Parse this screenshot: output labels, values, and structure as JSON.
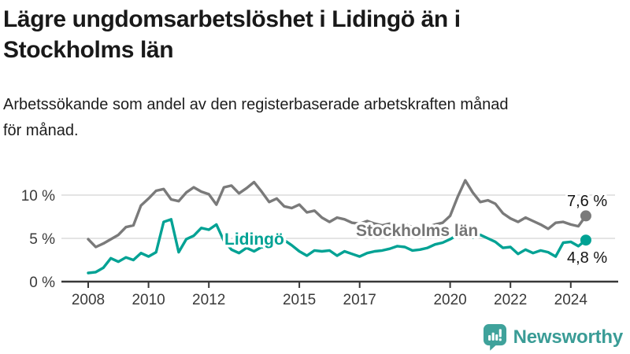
{
  "header": {
    "title_line1": "Lägre ungdomsarbetslöshet i Lidingö än i",
    "title_line2": "Stockholms län",
    "subtitle_line1": "Arbetssökande som andel av den registerbaserade arbetskraften månad",
    "subtitle_line2": "för månad."
  },
  "chart_data": {
    "type": "line",
    "title": "Lägre ungdomsarbetslöshet i Lidingö än i Stockholms län",
    "subtitle": "Arbetssökande som andel av den registerbaserade arbetskraften månad för månad.",
    "xlabel": "",
    "ylabel": "",
    "grid": "horizontal-gridlines-at-5-and-10-percent",
    "legend_position": "inline-labels-on-lines",
    "ylim": [
      0,
      12.5
    ],
    "xlim": [
      2008,
      2024.58
    ],
    "yticks": [
      {
        "value": 0,
        "label": "0 %"
      },
      {
        "value": 5,
        "label": "5 %"
      },
      {
        "value": 10,
        "label": "10 %"
      }
    ],
    "xticks": [
      {
        "value": 2008,
        "label": "2008"
      },
      {
        "value": 2010,
        "label": "2010"
      },
      {
        "value": 2012,
        "label": "2012"
      },
      {
        "value": 2015,
        "label": "2015"
      },
      {
        "value": 2017,
        "label": "2017"
      },
      {
        "value": 2020,
        "label": "2020"
      },
      {
        "value": 2022,
        "label": "2022"
      },
      {
        "value": 2024,
        "label": "2024"
      }
    ],
    "x": [
      2008.0,
      2008.25,
      2008.5,
      2008.75,
      2009.0,
      2009.25,
      2009.5,
      2009.75,
      2010.0,
      2010.25,
      2010.5,
      2010.75,
      2011.0,
      2011.25,
      2011.5,
      2011.75,
      2012.0,
      2012.25,
      2012.5,
      2012.75,
      2013.0,
      2013.25,
      2013.5,
      2013.75,
      2014.0,
      2014.25,
      2014.5,
      2014.75,
      2015.0,
      2015.25,
      2015.5,
      2015.75,
      2016.0,
      2016.25,
      2016.5,
      2016.75,
      2017.0,
      2017.25,
      2017.5,
      2017.75,
      2018.0,
      2018.25,
      2018.5,
      2018.75,
      2019.0,
      2019.25,
      2019.5,
      2019.75,
      2020.0,
      2020.25,
      2020.5,
      2020.75,
      2021.0,
      2021.25,
      2021.5,
      2021.75,
      2022.0,
      2022.25,
      2022.5,
      2022.75,
      2023.0,
      2023.25,
      2023.5,
      2023.75,
      2024.0,
      2024.25,
      2024.5
    ],
    "series": [
      {
        "id": "stockholms-lan",
        "name": "Stockholms län",
        "color": "#7a7a7a",
        "label_color": "#757575",
        "end_label": "7,6 %",
        "end_value": 7.6,
        "values": [
          4.9,
          4.0,
          4.4,
          4.9,
          5.4,
          6.3,
          6.5,
          8.8,
          9.6,
          10.5,
          10.7,
          9.5,
          9.3,
          10.3,
          10.9,
          10.4,
          10.1,
          8.9,
          10.9,
          11.1,
          10.2,
          10.8,
          11.5,
          10.4,
          9.2,
          9.6,
          8.7,
          8.5,
          8.9,
          8.0,
          8.2,
          7.4,
          6.9,
          7.4,
          7.2,
          6.8,
          6.7,
          7.0,
          6.7,
          6.5,
          6.7,
          6.4,
          6.6,
          6.3,
          6.4,
          6.3,
          6.6,
          6.8,
          7.6,
          9.8,
          11.7,
          10.3,
          9.2,
          9.4,
          9.0,
          7.9,
          7.3,
          6.9,
          7.4,
          7.0,
          6.6,
          6.1,
          6.8,
          6.9,
          6.6,
          6.4,
          7.6
        ]
      },
      {
        "id": "lidingo",
        "name": "Lidingö",
        "color": "#00a294",
        "label_color": "#00a294",
        "end_label": "4,8 %",
        "end_value": 4.8,
        "values": [
          1.0,
          1.1,
          1.6,
          2.7,
          2.3,
          2.8,
          2.5,
          3.3,
          2.9,
          3.4,
          6.9,
          7.2,
          3.4,
          4.9,
          5.3,
          6.2,
          6.0,
          6.6,
          4.7,
          3.7,
          3.3,
          3.9,
          3.5,
          4.0,
          3.8,
          4.6,
          4.8,
          4.2,
          3.5,
          3.0,
          3.6,
          3.5,
          3.6,
          3.0,
          3.5,
          3.2,
          2.9,
          3.3,
          3.5,
          3.6,
          3.8,
          4.1,
          4.0,
          3.6,
          3.7,
          3.9,
          4.3,
          4.5,
          4.9,
          5.4,
          5.6,
          5.1,
          5.4,
          5.0,
          4.6,
          3.9,
          4.0,
          3.2,
          3.7,
          3.3,
          3.6,
          3.4,
          2.9,
          4.5,
          4.6,
          4.1,
          4.8
        ]
      }
    ],
    "colors": {
      "gridline": "#dcdcdc",
      "axis": "#383838",
      "tick_label": "#3a3a3a",
      "end_label": "#141414"
    }
  },
  "logo": {
    "name": "Newsworthy",
    "icon": "bar-chart-speech-bubble",
    "color": "#3a9c96"
  }
}
